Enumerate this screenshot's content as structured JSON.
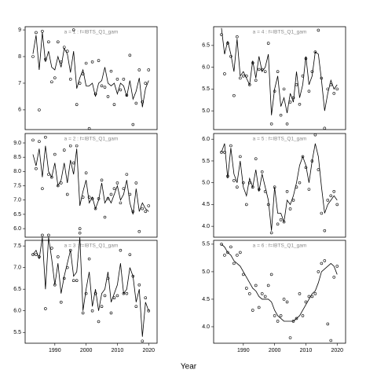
{
  "xlabel": "Year",
  "chart_data": [
    {
      "type": "line",
      "title": "a = 1  :  f=IBTS_Q1_gam",
      "x": [
        1983,
        1984,
        1985,
        1986,
        1987,
        1988,
        1989,
        1990,
        1991,
        1992,
        1993,
        1994,
        1995,
        1996,
        1997,
        1998,
        1999,
        2000,
        2001,
        2002,
        2003,
        2004,
        2005,
        2006,
        2007,
        2008,
        2009,
        2010,
        2011,
        2012,
        2013,
        2014,
        2015,
        2016,
        2017,
        2018,
        2019,
        2020
      ],
      "xlim": [
        1980.5,
        2022.7
      ],
      "ylim": [
        5.26,
        9.12
      ],
      "yticks": [
        6,
        7,
        8,
        9
      ],
      "series": [
        {
          "style": "points",
          "color": "#000000",
          "values": [
            8.0,
            8.9,
            6.0,
            8.95,
            7.9,
            8.55,
            7.05,
            7.2,
            8.55,
            7.8,
            8.35,
            8.2,
            7.15,
            9.0,
            6.2,
            7.0,
            7.35,
            7.75,
            5.3,
            7.8,
            6.6,
            7.85,
            6.9,
            6.85,
            6.5,
            7.45,
            6.2,
            7.15,
            6.75,
            7.15,
            6.55,
            8.05,
            5.45,
            6.25,
            7.5,
            6.3,
            7.0,
            7.5
          ]
        },
        {
          "style": "line",
          "color": "#000000",
          "values": [
            8.1,
            8.8,
            7.5,
            8.9,
            7.8,
            8.2,
            7.6,
            7.5,
            8.0,
            7.6,
            8.3,
            8.1,
            7.4,
            8.2,
            6.8,
            7.2,
            7.5,
            6.9,
            6.9,
            7.0,
            6.5,
            7.0,
            7.1,
            7.6,
            7.0,
            6.9,
            7.0,
            6.6,
            7.0,
            6.9,
            6.5,
            7.1,
            6.4,
            6.7,
            7.2,
            6.1,
            6.8,
            7.1
          ]
        }
      ]
    },
    {
      "type": "line",
      "title": "a = 2  :  f=IBTS_Q1_gam",
      "x": [
        1983,
        1984,
        1985,
        1986,
        1987,
        1988,
        1989,
        1990,
        1991,
        1992,
        1993,
        1994,
        1995,
        1996,
        1997,
        1998,
        1999,
        2000,
        2001,
        2002,
        2003,
        2004,
        2005,
        2006,
        2007,
        2008,
        2009,
        2010,
        2011,
        2012,
        2013,
        2014,
        2015,
        2016,
        2017,
        2018,
        2019,
        2020
      ],
      "xlim": [
        1980.5,
        2022.7
      ],
      "ylim": [
        5.7,
        9.33
      ],
      "yticks": [
        {
          "value": 6,
          "label": "6.0"
        },
        6.5,
        {
          "value": 7,
          "label": "7.0"
        },
        7.5,
        {
          "value": 8,
          "label": "8.0"
        },
        8.5,
        {
          "value": 9,
          "label": "9.0"
        }
      ],
      "series": [
        {
          "style": "points",
          "color": "#000000",
          "values": [
            9.1,
            8.1,
            9.05,
            7.4,
            9.2,
            7.9,
            7.8,
            8.6,
            7.5,
            7.6,
            8.75,
            7.2,
            8.9,
            8.3,
            8.9,
            6.0,
            7.1,
            7.95,
            7.1,
            7.05,
            6.7,
            7.05,
            7.7,
            6.4,
            7.05,
            7.2,
            7.4,
            7.6,
            6.9,
            7.4,
            7.9,
            7.2,
            6.6,
            7.6,
            5.9,
            6.7,
            6.6,
            6.8
          ]
        },
        {
          "style": "line",
          "color": "#000000",
          "values": [
            8.6,
            8.2,
            8.8,
            7.8,
            8.9,
            8.0,
            7.8,
            8.3,
            7.5,
            7.7,
            8.3,
            7.6,
            8.4,
            7.9,
            8.8,
            6.8,
            7.3,
            7.7,
            6.9,
            7.1,
            6.7,
            7.0,
            7.6,
            6.9,
            7.1,
            6.9,
            7.2,
            7.5,
            7.0,
            7.2,
            7.7,
            6.9,
            6.5,
            7.4,
            6.6,
            6.9,
            6.7,
            6.6
          ]
        }
      ]
    },
    {
      "type": "line",
      "title": "a = 3  :  f=IBTS_Q1_gam",
      "x": [
        1983,
        1984,
        1985,
        1986,
        1987,
        1988,
        1989,
        1990,
        1991,
        1992,
        1993,
        1994,
        1995,
        1996,
        1997,
        1998,
        1999,
        2000,
        2001,
        2002,
        2003,
        2004,
        2005,
        2006,
        2007,
        2008,
        2009,
        2010,
        2011,
        2012,
        2013,
        2014,
        2015,
        2016,
        2017,
        2018,
        2019,
        2020
      ],
      "xlim": [
        1980.5,
        2022.7
      ],
      "ylim": [
        5.25,
        7.63
      ],
      "xticks": [
        1990,
        2000,
        2010,
        2020
      ],
      "yticks": [
        5.5,
        {
          "value": 6,
          "label": "6.0"
        },
        6.5,
        {
          "value": 7,
          "label": "7.0"
        },
        7.5
      ],
      "series": [
        {
          "style": "points",
          "color": "#000000",
          "values": [
            7.3,
            7.3,
            7.25,
            7.75,
            6.05,
            7.75,
            7.45,
            6.6,
            7.25,
            6.2,
            6.75,
            7.0,
            7.4,
            6.7,
            6.7,
            7.8,
            5.95,
            6.4,
            7.2,
            6.0,
            6.4,
            5.75,
            6.1,
            6.35,
            6.75,
            5.95,
            6.3,
            6.35,
            7.4,
            6.4,
            6.4,
            7.3,
            6.8,
            6.1,
            6.6,
            5.3,
            6.3,
            6.0
          ]
        },
        {
          "style": "line",
          "color": "#000000",
          "values": [
            7.3,
            7.4,
            7.2,
            7.7,
            6.5,
            7.7,
            7.2,
            6.6,
            7.1,
            6.4,
            6.8,
            7.1,
            7.4,
            6.8,
            6.9,
            7.7,
            6.0,
            6.5,
            6.9,
            6.1,
            6.5,
            6.0,
            6.4,
            6.5,
            6.9,
            6.2,
            6.4,
            6.6,
            7.1,
            6.4,
            6.5,
            7.0,
            6.8,
            6.2,
            6.5,
            5.4,
            6.2,
            6.0
          ]
        }
      ]
    },
    {
      "type": "line",
      "title": "a = 4  :  f=IBTS_Q1_gam",
      "x": [
        1983,
        1984,
        1985,
        1986,
        1987,
        1988,
        1989,
        1990,
        1991,
        1992,
        1993,
        1994,
        1995,
        1996,
        1997,
        1998,
        1999,
        2000,
        2001,
        2002,
        2003,
        2004,
        2005,
        2006,
        2007,
        2008,
        2009,
        2010,
        2011,
        2012,
        2013,
        2014,
        2015,
        2016,
        2017,
        2018,
        2019,
        2020
      ],
      "xlim": [
        1980.5,
        2022.7
      ],
      "ylim": [
        4.57,
        6.93
      ],
      "yticks": [
        {
          "value": 5,
          "label": "5.0"
        },
        5.5,
        {
          "value": 6,
          "label": "6.0"
        },
        6.5
      ],
      "series": [
        {
          "style": "points",
          "color": "#000000",
          "values": [
            6.75,
            5.85,
            6.55,
            6.25,
            5.35,
            6.7,
            5.75,
            5.8,
            5.8,
            5.6,
            6.1,
            5.7,
            5.95,
            5.95,
            5.9,
            6.55,
            4.7,
            5.45,
            5.9,
            4.9,
            5.5,
            4.7,
            5.2,
            5.3,
            5.6,
            5.15,
            5.8,
            6.2,
            5.45,
            5.9,
            6.35,
            6.85,
            5.75,
            4.6,
            5.5,
            5.6,
            5.4,
            5.5
          ]
        },
        {
          "style": "line",
          "color": "#000000",
          "values": [
            6.9,
            6.3,
            6.6,
            6.3,
            5.9,
            6.65,
            5.8,
            5.9,
            5.75,
            5.6,
            6.15,
            5.75,
            6.25,
            5.9,
            6.0,
            6.3,
            4.9,
            5.5,
            5.8,
            5.1,
            5.3,
            4.95,
            5.4,
            5.2,
            5.9,
            5.3,
            5.6,
            6.25,
            5.6,
            5.8,
            6.35,
            6.3,
            5.7,
            5.0,
            5.4,
            5.7,
            5.5,
            5.6
          ]
        }
      ]
    },
    {
      "type": "line",
      "title": "a = 5  :  f=IBTS_Q1_gam",
      "x": [
        1983,
        1984,
        1985,
        1986,
        1987,
        1988,
        1989,
        1990,
        1991,
        1992,
        1993,
        1994,
        1995,
        1996,
        1997,
        1998,
        1999,
        2000,
        2001,
        2002,
        2003,
        2004,
        2005,
        2006,
        2007,
        2008,
        2009,
        2010,
        2011,
        2012,
        2013,
        2014,
        2015,
        2016,
        2017,
        2018,
        2019,
        2020
      ],
      "xlim": [
        1980.5,
        2022.7
      ],
      "ylim": [
        3.75,
        6.13
      ],
      "yticks": [
        {
          "value": 4,
          "label": "4.0"
        },
        4.5,
        {
          "value": 5,
          "label": "5.0"
        },
        5.5,
        {
          "value": 6,
          "label": "6.0"
        }
      ],
      "series": [
        {
          "style": "points",
          "color": "#000000",
          "values": [
            5.7,
            5.7,
            5.15,
            5.85,
            5.05,
            4.9,
            5.6,
            5.0,
            4.5,
            5.0,
            4.9,
            5.55,
            4.85,
            5.25,
            4.8,
            4.5,
            3.85,
            4.9,
            4.05,
            4.15,
            4.1,
            4.8,
            4.4,
            4.6,
            4.9,
            5.0,
            5.6,
            5.35,
            4.85,
            5.5,
            6.1,
            5.3,
            4.3,
            3.9,
            4.6,
            4.7,
            4.8,
            4.5
          ]
        },
        {
          "style": "line",
          "color": "#000000",
          "values": [
            5.7,
            5.9,
            5.1,
            5.8,
            5.2,
            5.0,
            5.5,
            4.9,
            4.7,
            5.1,
            4.9,
            5.3,
            4.8,
            5.2,
            4.9,
            4.6,
            3.9,
            4.9,
            4.3,
            4.3,
            4.1,
            4.6,
            4.5,
            4.7,
            5.0,
            5.4,
            5.6,
            5.4,
            5.0,
            5.5,
            5.9,
            5.6,
            4.9,
            4.3,
            4.5,
            4.6,
            4.7,
            4.6
          ]
        }
      ]
    },
    {
      "type": "line",
      "title": "a = 6  :  f=IBTS_Q1_gam",
      "x": [
        1983,
        1984,
        1985,
        1986,
        1987,
        1988,
        1989,
        1990,
        1991,
        1992,
        1993,
        1994,
        1995,
        1996,
        1997,
        1998,
        1999,
        2000,
        2001,
        2002,
        2003,
        2004,
        2005,
        2006,
        2007,
        2008,
        2009,
        2010,
        2011,
        2012,
        2013,
        2014,
        2015,
        2016,
        2017,
        2018,
        2019,
        2020
      ],
      "xlim": [
        1980.5,
        2022.7
      ],
      "ylim": [
        3.7,
        5.57
      ],
      "xticks": [
        1990,
        2000,
        2010,
        2020
      ],
      "yticks": [
        {
          "value": 4,
          "label": "4.0"
        },
        4.5,
        {
          "value": 5,
          "label": "5.0"
        },
        5.5
      ],
      "series": [
        {
          "style": "points",
          "color": "#000000",
          "values": [
            5.5,
            5.3,
            5.35,
            5.45,
            5.15,
            5.3,
            5.35,
            4.95,
            4.7,
            4.6,
            4.3,
            4.75,
            4.35,
            4.6,
            4.55,
            4.75,
            4.95,
            4.2,
            4.1,
            4.2,
            4.5,
            4.45,
            3.8,
            4.1,
            4.15,
            4.6,
            4.2,
            4.45,
            4.55,
            4.55,
            4.6,
            5.0,
            5.15,
            5.2,
            4.05,
            3.75,
            4.9,
            5.1
          ]
        },
        {
          "style": "line",
          "color": "#000000",
          "values": [
            5.5,
            5.45,
            5.35,
            5.3,
            5.2,
            5.15,
            5.1,
            5.0,
            4.9,
            4.8,
            4.7,
            4.65,
            4.55,
            4.5,
            4.5,
            4.5,
            4.45,
            4.3,
            4.2,
            4.15,
            4.1,
            4.1,
            4.1,
            4.1,
            4.15,
            4.2,
            4.3,
            4.4,
            4.5,
            4.6,
            4.65,
            4.8,
            5.0,
            5.05,
            5.1,
            5.15,
            5.1,
            4.95
          ]
        }
      ]
    }
  ]
}
